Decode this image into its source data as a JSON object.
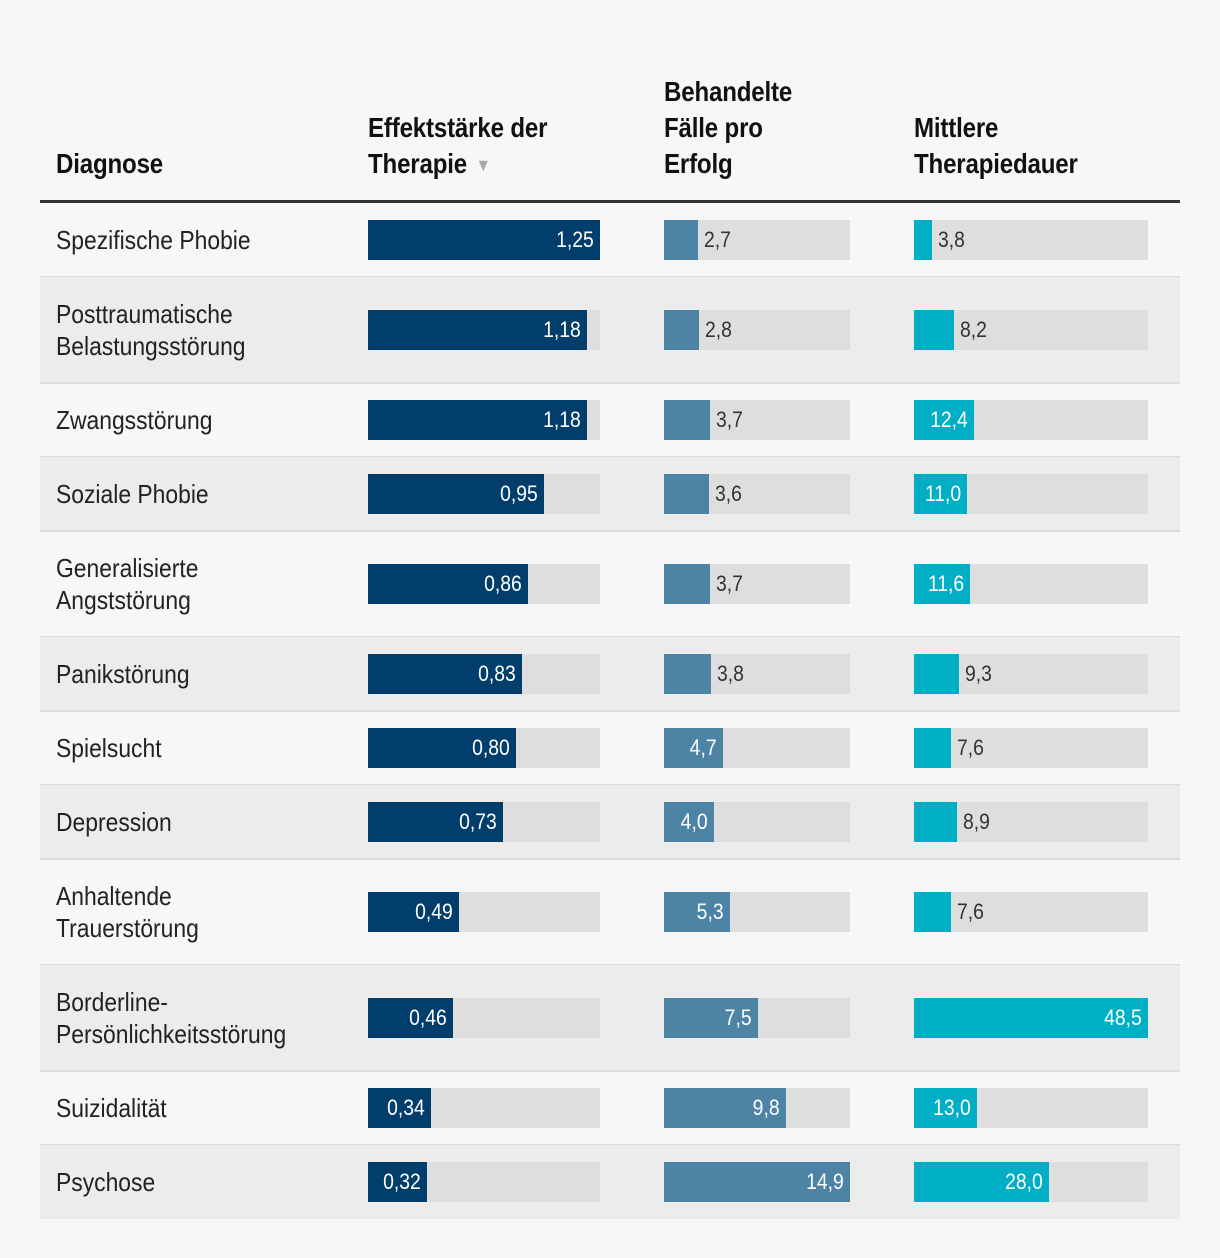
{
  "colors": {
    "effect": "#023e6c",
    "cases": "#4d84a6",
    "duration": "#00aec6",
    "track": "#dedede",
    "background": "#f7f7f7",
    "row_alt": "#ececec"
  },
  "header": {
    "diagnosis": "Diagnose",
    "effect": "Effektstärke der\nTherapie",
    "effect_sort_icon": "▼",
    "cases": "Behandelte\nFälle pro\nErfolg",
    "duration": "Mittlere\nTherapiedauer"
  },
  "chart_data": {
    "type": "table",
    "sorted_by": "Effektstärke der Therapie",
    "sort_direction": "descending",
    "columns": [
      {
        "key": "effect",
        "label": "Effektstärke der Therapie",
        "max": 1.25
      },
      {
        "key": "cases",
        "label": "Behandelte Fälle pro Erfolg",
        "max": 14.9
      },
      {
        "key": "duration",
        "label": "Mittlere Therapiedauer",
        "max": 48.5
      }
    ],
    "rows": [
      {
        "diagnosis": "Spezifische Phobie",
        "effect": 1.25,
        "effect_label": "1,25",
        "cases": 2.7,
        "cases_label": "2,7",
        "duration": 3.8,
        "duration_label": "3,8"
      },
      {
        "diagnosis": "Posttraumatische\nBelastungsstörung",
        "effect": 1.18,
        "effect_label": "1,18",
        "cases": 2.8,
        "cases_label": "2,8",
        "duration": 8.2,
        "duration_label": "8,2"
      },
      {
        "diagnosis": "Zwangsstörung",
        "effect": 1.18,
        "effect_label": "1,18",
        "cases": 3.7,
        "cases_label": "3,7",
        "duration": 12.4,
        "duration_label": "12,4"
      },
      {
        "diagnosis": "Soziale Phobie",
        "effect": 0.95,
        "effect_label": "0,95",
        "cases": 3.6,
        "cases_label": "3,6",
        "duration": 11.0,
        "duration_label": "11,0"
      },
      {
        "diagnosis": "Generalisierte\nAngststörung",
        "effect": 0.86,
        "effect_label": "0,86",
        "cases": 3.7,
        "cases_label": "3,7",
        "duration": 11.6,
        "duration_label": "11,6"
      },
      {
        "diagnosis": "Panikstörung",
        "effect": 0.83,
        "effect_label": "0,83",
        "cases": 3.8,
        "cases_label": "3,8",
        "duration": 9.3,
        "duration_label": "9,3"
      },
      {
        "diagnosis": "Spielsucht",
        "effect": 0.8,
        "effect_label": "0,80",
        "cases": 4.7,
        "cases_label": "4,7",
        "duration": 7.6,
        "duration_label": "7,6"
      },
      {
        "diagnosis": "Depression",
        "effect": 0.73,
        "effect_label": "0,73",
        "cases": 4.0,
        "cases_label": "4,0",
        "duration": 8.9,
        "duration_label": "8,9"
      },
      {
        "diagnosis": "Anhaltende\nTrauerstörung",
        "effect": 0.49,
        "effect_label": "0,49",
        "cases": 5.3,
        "cases_label": "5,3",
        "duration": 7.6,
        "duration_label": "7,6"
      },
      {
        "diagnosis": "Borderline-\nPersönlichkeitsstörung",
        "effect": 0.46,
        "effect_label": "0,46",
        "cases": 7.5,
        "cases_label": "7,5",
        "duration": 48.5,
        "duration_label": "48,5"
      },
      {
        "diagnosis": "Suizidalität",
        "effect": 0.34,
        "effect_label": "0,34",
        "cases": 9.8,
        "cases_label": "9,8",
        "duration": 13.0,
        "duration_label": "13,0"
      },
      {
        "diagnosis": "Psychose",
        "effect": 0.32,
        "effect_label": "0,32",
        "cases": 14.9,
        "cases_label": "14,9",
        "duration": 28.0,
        "duration_label": "28,0"
      }
    ]
  }
}
